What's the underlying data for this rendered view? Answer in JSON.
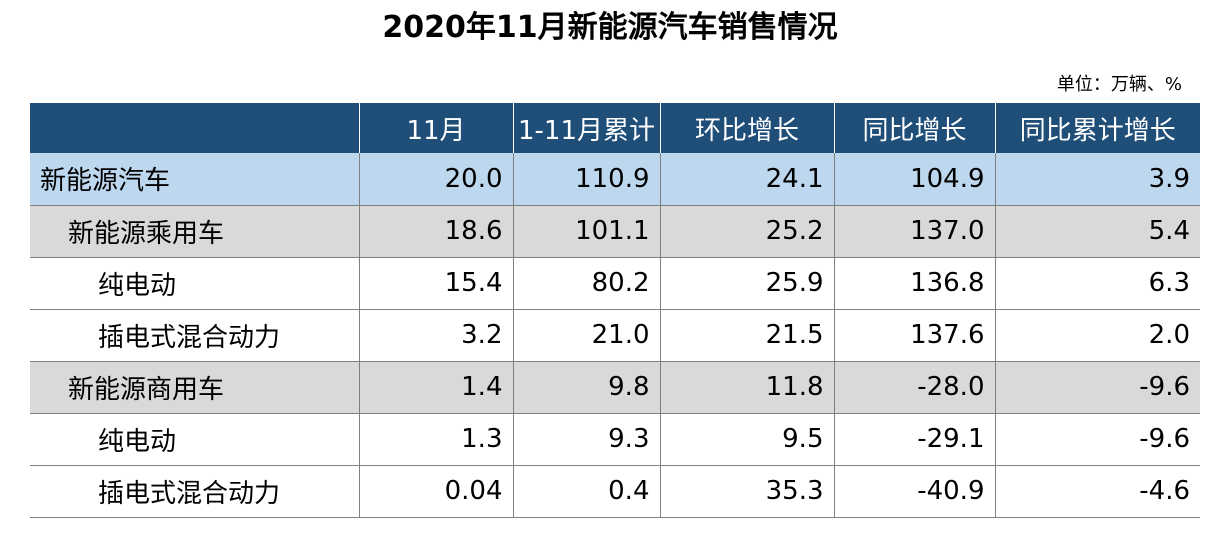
{
  "title": "2020年11月新能源汽车销售情况",
  "unit": "单位：万辆、%",
  "table": {
    "headers": [
      "",
      "11月",
      "1-11月累计",
      "环比增长",
      "同比增长",
      "同比累计增长"
    ],
    "rows": [
      {
        "label": "新能源汽车",
        "level": 0,
        "values": [
          "20.0",
          "110.9",
          "24.1",
          "104.9",
          "3.9"
        ]
      },
      {
        "label": "新能源乘用车",
        "level": 1,
        "values": [
          "18.6",
          "101.1",
          "25.2",
          "137.0",
          "5.4"
        ]
      },
      {
        "label": "纯电动",
        "level": 2,
        "values": [
          "15.4",
          "80.2",
          "25.9",
          "136.8",
          "6.3"
        ]
      },
      {
        "label": "插电式混合动力",
        "level": 2,
        "values": [
          "3.2",
          "21.0",
          "21.5",
          "137.6",
          "2.0"
        ]
      },
      {
        "label": "新能源商用车",
        "level": 1,
        "values": [
          "1.4",
          "9.8",
          "11.8",
          "-28.0",
          "-9.6"
        ]
      },
      {
        "label": "纯电动",
        "level": 2,
        "values": [
          "1.3",
          "9.3",
          "9.5",
          "-29.1",
          "-9.6"
        ]
      },
      {
        "label": "插电式混合动力",
        "level": 2,
        "values": [
          "0.04",
          "0.4",
          "35.3",
          "-40.9",
          "-4.6"
        ]
      }
    ]
  },
  "colors": {
    "header_bg": "#1f4e79",
    "total_row_bg": "#bdd7ee",
    "subtotal_row_bg": "#d9d9d9"
  }
}
